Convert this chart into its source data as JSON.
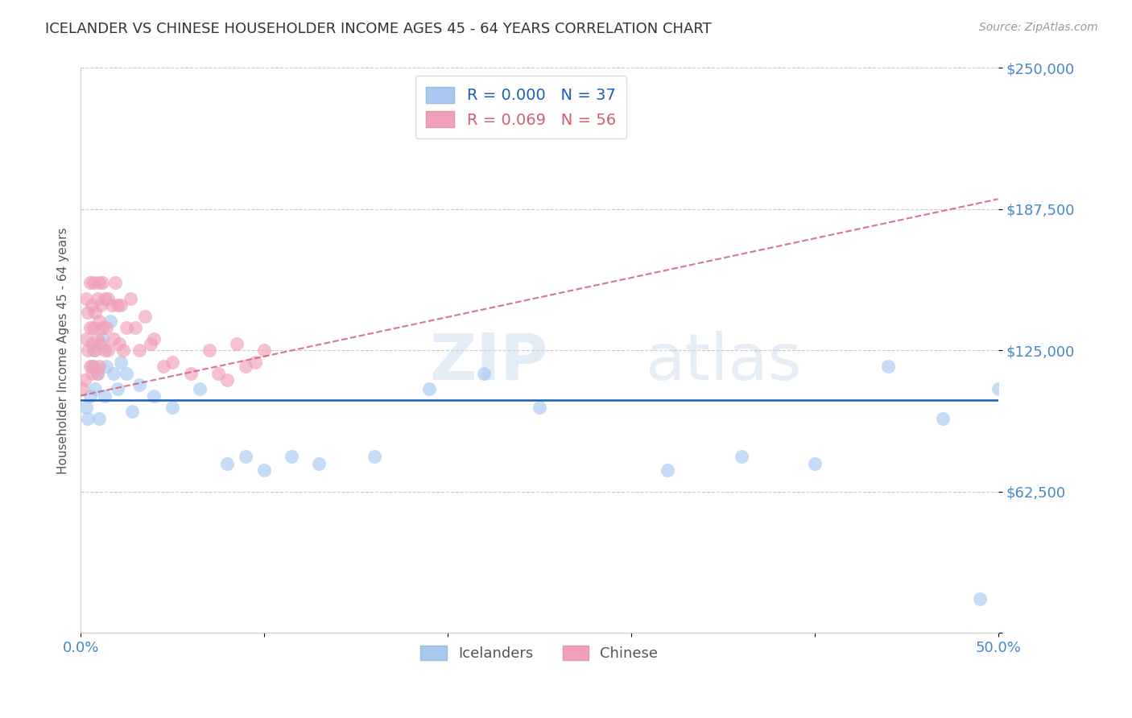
{
  "title": "ICELANDER VS CHINESE HOUSEHOLDER INCOME AGES 45 - 64 YEARS CORRELATION CHART",
  "source": "Source: ZipAtlas.com",
  "ylabel": "Householder Income Ages 45 - 64 years",
  "xlim": [
    0,
    0.5
  ],
  "ylim": [
    0,
    250000
  ],
  "yticks": [
    0,
    62500,
    125000,
    187500,
    250000
  ],
  "ytick_labels": [
    "",
    "$62,500",
    "$125,000",
    "$187,500",
    "$250,000"
  ],
  "xticks": [
    0.0,
    0.1,
    0.2,
    0.3,
    0.4,
    0.5
  ],
  "xtick_labels": [
    "0.0%",
    "",
    "",
    "",
    "",
    "50.0%"
  ],
  "watermark": "ZIPatlas",
  "blue_color": "#a8c8f0",
  "pink_color": "#f0a0b8",
  "blue_line_color": "#1a5fb4",
  "pink_line_color": "#d06070",
  "grid_color": "#cccccc",
  "title_color": "#333333",
  "ytick_color": "#4488cc",
  "icelanders_x": [
    0.003,
    0.004,
    0.005,
    0.006,
    0.007,
    0.008,
    0.009,
    0.01,
    0.012,
    0.013,
    0.014,
    0.016,
    0.018,
    0.02,
    0.022,
    0.025,
    0.028,
    0.032,
    0.04,
    0.05,
    0.065,
    0.08,
    0.09,
    0.1,
    0.115,
    0.13,
    0.16,
    0.19,
    0.22,
    0.25,
    0.32,
    0.36,
    0.4,
    0.44,
    0.47,
    0.49,
    0.5
  ],
  "icelanders_y": [
    100000,
    95000,
    105000,
    118000,
    125000,
    108000,
    115000,
    95000,
    130000,
    105000,
    118000,
    138000,
    115000,
    108000,
    120000,
    115000,
    98000,
    110000,
    105000,
    100000,
    108000,
    75000,
    78000,
    72000,
    78000,
    75000,
    78000,
    108000,
    115000,
    100000,
    72000,
    78000,
    75000,
    118000,
    95000,
    15000,
    108000
  ],
  "chinese_x": [
    0.001,
    0.002,
    0.003,
    0.003,
    0.004,
    0.004,
    0.005,
    0.005,
    0.005,
    0.006,
    0.006,
    0.006,
    0.007,
    0.007,
    0.007,
    0.008,
    0.008,
    0.009,
    0.009,
    0.009,
    0.01,
    0.01,
    0.01,
    0.011,
    0.011,
    0.012,
    0.012,
    0.013,
    0.013,
    0.014,
    0.015,
    0.015,
    0.017,
    0.018,
    0.019,
    0.02,
    0.021,
    0.022,
    0.023,
    0.025,
    0.027,
    0.03,
    0.032,
    0.035,
    0.038,
    0.04,
    0.045,
    0.05,
    0.06,
    0.07,
    0.075,
    0.08,
    0.085,
    0.09,
    0.095,
    0.1
  ],
  "chinese_y": [
    108000,
    112000,
    130000,
    148000,
    125000,
    142000,
    135000,
    118000,
    155000,
    145000,
    128000,
    115000,
    155000,
    135000,
    118000,
    142000,
    125000,
    148000,
    130000,
    115000,
    155000,
    138000,
    118000,
    145000,
    128000,
    155000,
    135000,
    148000,
    125000,
    135000,
    148000,
    125000,
    145000,
    130000,
    155000,
    145000,
    128000,
    145000,
    125000,
    135000,
    148000,
    135000,
    125000,
    140000,
    128000,
    130000,
    118000,
    120000,
    115000,
    125000,
    115000,
    112000,
    128000,
    118000,
    120000,
    125000
  ],
  "blue_trend_y": 103000,
  "pink_trend_x0": 0.0,
  "pink_trend_y0": 105000,
  "pink_trend_x1": 0.5,
  "pink_trend_y1": 192000
}
